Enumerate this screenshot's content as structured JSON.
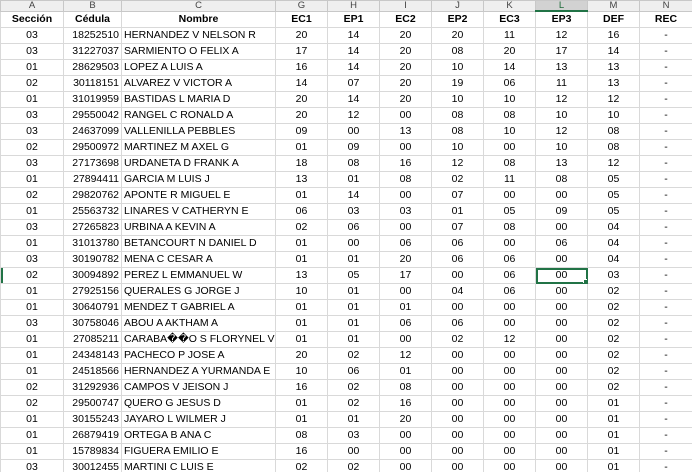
{
  "columns": [
    "A",
    "B",
    "C",
    "G",
    "H",
    "I",
    "J",
    "K",
    "L",
    "M",
    "N"
  ],
  "selected_column": "L",
  "headers": [
    "Sección",
    "Cédula",
    "Nombre",
    "EC1",
    "EP1",
    "EC2",
    "EP2",
    "EC3",
    "EP3",
    "DEF",
    "REC"
  ],
  "active_cell": {
    "row": 15,
    "col": 8
  },
  "rows": [
    [
      "03",
      "18252510",
      "HERNANDEZ V NELSON R",
      "20",
      "14",
      "20",
      "20",
      "11",
      "12",
      "16",
      "-"
    ],
    [
      "03",
      "31227037",
      "SARMIENTO O FELIX A",
      "17",
      "14",
      "20",
      "08",
      "20",
      "17",
      "14",
      "-"
    ],
    [
      "01",
      "28629503",
      "LOPEZ A LUIS A",
      "16",
      "14",
      "20",
      "10",
      "14",
      "13",
      "13",
      "-"
    ],
    [
      "02",
      "30118151",
      "ALVAREZ V VICTOR A",
      "14",
      "07",
      "20",
      "19",
      "06",
      "11",
      "13",
      "-"
    ],
    [
      "01",
      "31019959",
      "BASTIDAS L MARIA D",
      "20",
      "14",
      "20",
      "10",
      "10",
      "12",
      "12",
      "-"
    ],
    [
      "03",
      "29550042",
      "RANGEL C RONALD A",
      "20",
      "12",
      "00",
      "08",
      "08",
      "10",
      "10",
      "-"
    ],
    [
      "03",
      "24637099",
      "VALLENILLA  PEBBLES",
      "09",
      "00",
      "13",
      "08",
      "10",
      "12",
      "08",
      "-"
    ],
    [
      "02",
      "29500972",
      "MARTINEZ M AXEL G",
      "01",
      "09",
      "00",
      "10",
      "00",
      "10",
      "08",
      "-"
    ],
    [
      "03",
      "27173698",
      "URDANETA D FRANK A",
      "18",
      "08",
      "16",
      "12",
      "08",
      "13",
      "12",
      "-"
    ],
    [
      "01",
      "27894411",
      "GARCIA M LUIS J",
      "13",
      "01",
      "08",
      "02",
      "11",
      "08",
      "05",
      "-"
    ],
    [
      "02",
      "29820762",
      "APONTE R MIGUEL E",
      "01",
      "14",
      "00",
      "07",
      "00",
      "00",
      "05",
      "-"
    ],
    [
      "01",
      "25563732",
      "LINARES V CATHERYN E",
      "06",
      "03",
      "03",
      "01",
      "05",
      "09",
      "05",
      "-"
    ],
    [
      "03",
      "27265823",
      "URBINA A KEVIN A",
      "02",
      "06",
      "00",
      "07",
      "08",
      "00",
      "04",
      "-"
    ],
    [
      "01",
      "31013780",
      "BETANCOURT N DANIEL D",
      "01",
      "00",
      "06",
      "06",
      "00",
      "06",
      "04",
      "-"
    ],
    [
      "03",
      "30190782",
      "MENA C CESAR A",
      "01",
      "01",
      "20",
      "06",
      "06",
      "00",
      "04",
      "-"
    ],
    [
      "02",
      "30094892",
      "PEREZ L EMMANUEL W",
      "13",
      "05",
      "17",
      "00",
      "06",
      "00",
      "03",
      "-"
    ],
    [
      "01",
      "27925156",
      "QUERALES G JORGE J",
      "10",
      "01",
      "00",
      "04",
      "06",
      "00",
      "02",
      "-"
    ],
    [
      "01",
      "30640791",
      "MENDEZ T GABRIEL A",
      "01",
      "01",
      "01",
      "00",
      "00",
      "00",
      "02",
      "-"
    ],
    [
      "03",
      "30758046",
      "ABOU A AKTHAM A",
      "01",
      "01",
      "06",
      "06",
      "00",
      "00",
      "02",
      "-"
    ],
    [
      "01",
      "27085211",
      "CARABA��O S FLORYNEL V",
      "01",
      "01",
      "00",
      "02",
      "12",
      "00",
      "02",
      "-"
    ],
    [
      "01",
      "24348143",
      "PACHECO P JOSE A",
      "20",
      "02",
      "12",
      "00",
      "00",
      "00",
      "02",
      "-"
    ],
    [
      "01",
      "24518566",
      "HERNANDEZ A YURMANDA E",
      "10",
      "06",
      "01",
      "00",
      "00",
      "00",
      "02",
      "-"
    ],
    [
      "02",
      "31292936",
      "CAMPOS V JEISON J",
      "16",
      "02",
      "08",
      "00",
      "00",
      "00",
      "02",
      "-"
    ],
    [
      "02",
      "29500747",
      "QUERO G JESUS D",
      "01",
      "02",
      "16",
      "00",
      "00",
      "00",
      "01",
      "-"
    ],
    [
      "01",
      "30155243",
      "JAYARO L WILMER J",
      "01",
      "01",
      "20",
      "00",
      "00",
      "00",
      "01",
      "-"
    ],
    [
      "01",
      "26879419",
      "ORTEGA B ANA C",
      "08",
      "03",
      "00",
      "00",
      "00",
      "00",
      "01",
      "-"
    ],
    [
      "01",
      "15789834",
      "FIGUERA  EMILIO E",
      "16",
      "00",
      "00",
      "00",
      "00",
      "00",
      "01",
      "-"
    ],
    [
      "03",
      "30012455",
      "MARTINI C LUIS E",
      "02",
      "02",
      "00",
      "00",
      "00",
      "00",
      "01",
      "-"
    ]
  ]
}
